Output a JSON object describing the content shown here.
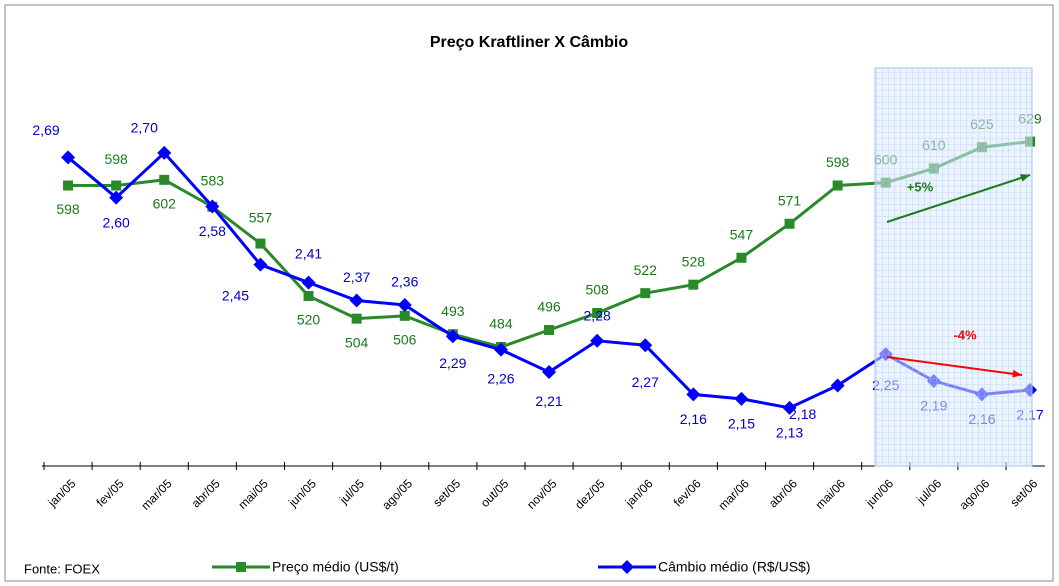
{
  "chart_data": {
    "type": "line",
    "title": "Preço Kraftliner X Câmbio",
    "source": "Fonte: FOEX",
    "categories": [
      "jan/05",
      "fev/05",
      "mar/05",
      "abr/05",
      "mai/05",
      "jun/05",
      "jul/05",
      "ago/05",
      "set/05",
      "out/05",
      "nov/05",
      "dez/05",
      "jan/06",
      "fev/06",
      "mar/06",
      "abr/06",
      "mai/06",
      "jun/06",
      "jul/06",
      "ago/06",
      "set/06"
    ],
    "ylim": [
      400,
      700
    ],
    "y2lim": [
      2.0,
      2.95
    ],
    "series": [
      {
        "name": "Preço médio (US$/t)",
        "color": "#2a8a2a",
        "values": [
          598,
          598,
          602,
          583,
          557,
          520,
          504,
          506,
          493,
          484,
          496,
          508,
          522,
          528,
          547,
          571,
          598,
          600,
          610,
          625,
          629
        ]
      },
      {
        "name": "Câmbio médio (R$/US$)",
        "color": "#0000ff",
        "axis": "y2",
        "values": [
          2.69,
          2.6,
          2.7,
          2.58,
          2.45,
          2.41,
          2.37,
          2.36,
          2.29,
          2.26,
          2.21,
          2.28,
          2.27,
          2.16,
          2.15,
          2.13,
          2.18,
          2.25,
          2.19,
          2.16,
          2.17
        ],
        "value_labels": [
          "2,69",
          "2,60",
          "2,70",
          "2,58",
          "2,45",
          "2,41",
          "2,37",
          "2,36",
          "2,29",
          "2,26",
          "2,21",
          "2,28",
          "2,27",
          "2,16",
          "2,15",
          "2,13",
          "2,18",
          "2,25",
          "2,19",
          "2,16",
          "2,17"
        ]
      }
    ],
    "annotations": [
      {
        "text": "+5%",
        "color": "#1a7a1a"
      },
      {
        "text": "-4%",
        "color": "#ff0000"
      }
    ]
  }
}
